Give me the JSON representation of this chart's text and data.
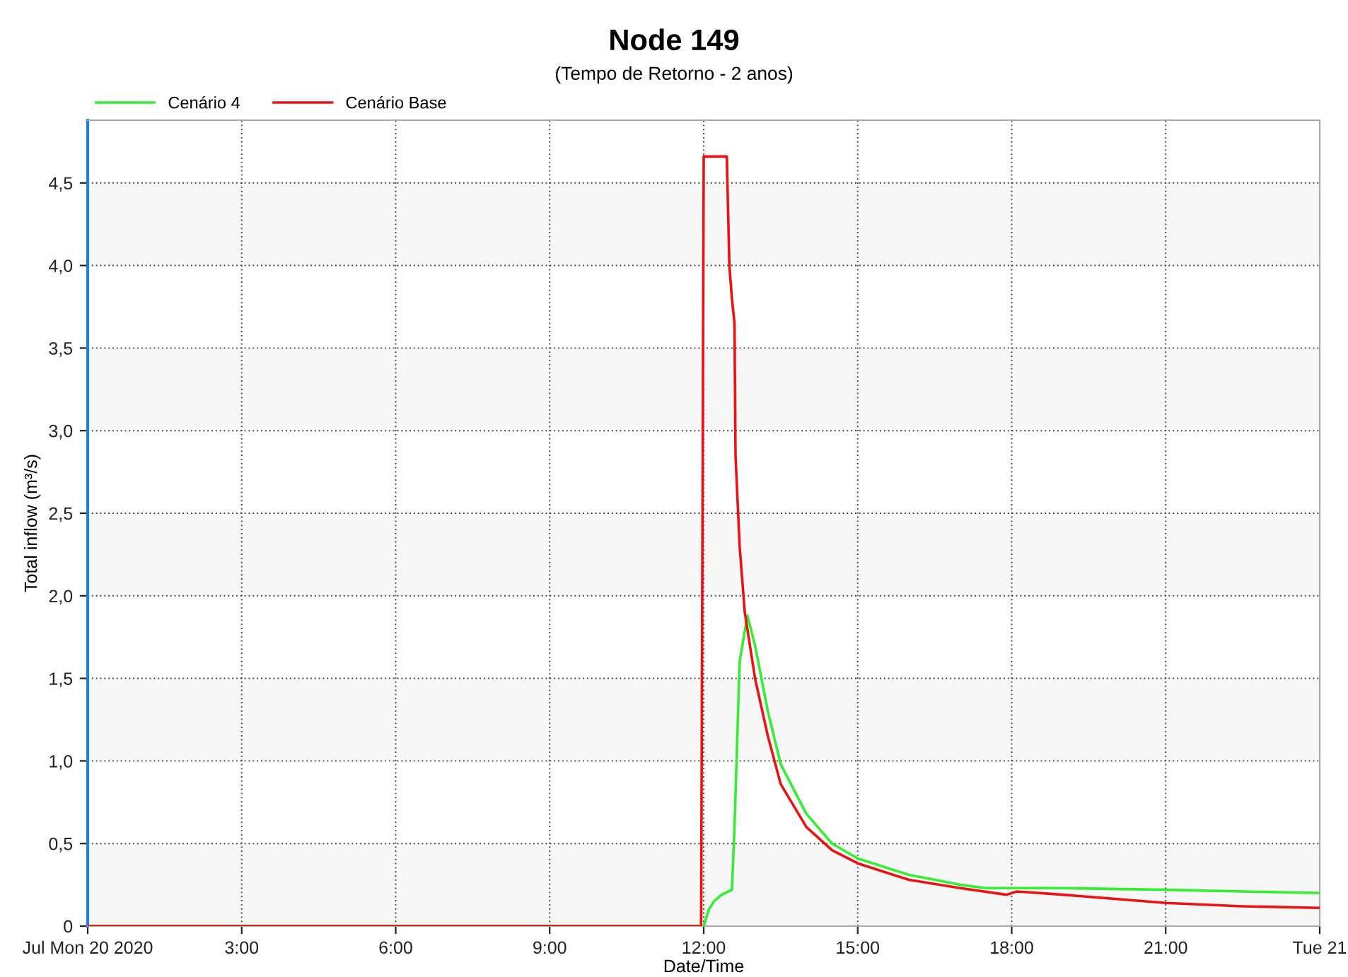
{
  "chart_data": {
    "type": "line",
    "title": "Node 149",
    "subtitle": "(Tempo de Retorno - 2 anos)",
    "xlabel": "Date/Time",
    "ylabel": "Total inflow (m³/s)",
    "xlim": [
      0,
      24
    ],
    "xticks": [
      {
        "value": 0,
        "label": "Jul Mon 20 2020"
      },
      {
        "value": 3,
        "label": "3:00"
      },
      {
        "value": 6,
        "label": "6:00"
      },
      {
        "value": 9,
        "label": "9:00"
      },
      {
        "value": 12,
        "label": "12:00"
      },
      {
        "value": 15,
        "label": "15:00"
      },
      {
        "value": 18,
        "label": "18:00"
      },
      {
        "value": 21,
        "label": "21:00"
      },
      {
        "value": 24,
        "label": "Tue 21"
      }
    ],
    "ylim": [
      0,
      4.88
    ],
    "yticks": [
      {
        "value": 0,
        "label": "0"
      },
      {
        "value": 0.5,
        "label": "0,5"
      },
      {
        "value": 1,
        "label": "1,0"
      },
      {
        "value": 1.5,
        "label": "1,5"
      },
      {
        "value": 2,
        "label": "2,0"
      },
      {
        "value": 2.5,
        "label": "2,5"
      },
      {
        "value": 3,
        "label": "3,0"
      },
      {
        "value": 3.5,
        "label": "3,5"
      },
      {
        "value": 4,
        "label": "4,0"
      },
      {
        "value": 4.5,
        "label": "4,5"
      }
    ],
    "grid": true,
    "legend": "top left",
    "marker": "none",
    "line_style": "solid",
    "bands": [
      {
        "axis": "y",
        "from": 0,
        "to": 0.5,
        "color": "#f7f7f7"
      },
      {
        "axis": "y",
        "from": 1,
        "to": 1.5,
        "color": "#f7f7f7"
      },
      {
        "axis": "y",
        "from": 2,
        "to": 2.5,
        "color": "#f7f7f7"
      },
      {
        "axis": "y",
        "from": 3,
        "to": 3.5,
        "color": "#f7f7f7"
      },
      {
        "axis": "y",
        "from": 4,
        "to": 4.5,
        "color": "#f7f7f7"
      }
    ],
    "series": [
      {
        "name": "Cenário 4",
        "color": "#33ee33",
        "x": [
          0,
          12.0,
          12.1,
          12.2,
          12.35,
          12.55,
          12.6,
          12.7,
          12.85,
          13.0,
          13.25,
          13.5,
          14,
          14.5,
          15,
          16,
          17,
          17.5,
          18,
          19,
          21,
          22.5,
          24
        ],
        "values": [
          0,
          0,
          0.1,
          0.15,
          0.19,
          0.22,
          0.6,
          1.6,
          1.88,
          1.7,
          1.3,
          0.98,
          0.68,
          0.5,
          0.41,
          0.31,
          0.25,
          0.23,
          0.23,
          0.23,
          0.22,
          0.21,
          0.2
        ]
      },
      {
        "name": "Cenário Base",
        "color": "#ee1111",
        "x": [
          0,
          11.95,
          12.0,
          12.45,
          12.5,
          12.55,
          12.6,
          12.62,
          12.7,
          12.8,
          13.0,
          13.25,
          13.5,
          14,
          14.5,
          15,
          16,
          17,
          17.9,
          18.1,
          19,
          21,
          22.5,
          24
        ],
        "values": [
          0,
          0,
          4.66,
          4.66,
          4.0,
          3.8,
          3.65,
          2.85,
          2.3,
          1.9,
          1.5,
          1.15,
          0.86,
          0.6,
          0.46,
          0.38,
          0.28,
          0.23,
          0.19,
          0.21,
          0.19,
          0.14,
          0.12,
          0.11
        ]
      }
    ]
  }
}
